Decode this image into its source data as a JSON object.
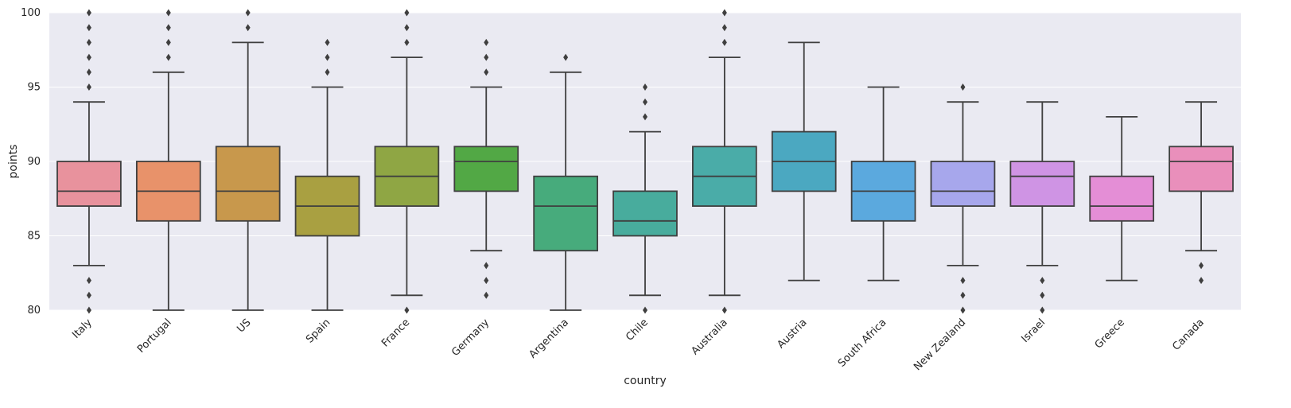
{
  "chart_data": {
    "type": "box",
    "xlabel": "country",
    "ylabel": "points",
    "ylim": [
      80,
      100
    ],
    "yticks": [
      80,
      85,
      90,
      95,
      100
    ],
    "grid": true,
    "style": {
      "background": "#eaeaf2",
      "gridline": "#ffffff",
      "box_edge": "#3f3f3f"
    },
    "categories": [
      "Italy",
      "Portugal",
      "US",
      "Spain",
      "France",
      "Germany",
      "Argentina",
      "Chile",
      "Australia",
      "Austria",
      "South Africa",
      "New Zealand",
      "Israel",
      "Greece",
      "Canada"
    ],
    "boxes": [
      {
        "name": "Italy",
        "color": "#e8929d",
        "whislo": 83,
        "q1": 87,
        "med": 88,
        "q3": 90,
        "whishi": 94,
        "fliers": [
          80,
          81,
          82,
          95,
          96,
          97,
          98,
          99,
          100
        ]
      },
      {
        "name": "Portugal",
        "color": "#e8926a",
        "whislo": 80,
        "q1": 86,
        "med": 88,
        "q3": 90,
        "whishi": 96,
        "fliers": [
          97,
          98,
          99,
          100
        ]
      },
      {
        "name": "US",
        "color": "#c8984c",
        "whislo": 80,
        "q1": 86,
        "med": 88,
        "q3": 91,
        "whishi": 98,
        "fliers": [
          99,
          100
        ]
      },
      {
        "name": "Spain",
        "color": "#a9a041",
        "whislo": 80,
        "q1": 85,
        "med": 87,
        "q3": 89,
        "whishi": 95,
        "fliers": [
          96,
          97,
          98
        ]
      },
      {
        "name": "France",
        "color": "#8fa644",
        "whislo": 81,
        "q1": 87,
        "med": 89,
        "q3": 91,
        "whishi": 97,
        "fliers": [
          80,
          98,
          99,
          100
        ]
      },
      {
        "name": "Germany",
        "color": "#52a845",
        "whislo": 84,
        "q1": 88,
        "med": 90,
        "q3": 91,
        "whishi": 95,
        "fliers": [
          81,
          82,
          83,
          96,
          97,
          98
        ]
      },
      {
        "name": "Argentina",
        "color": "#47ab7c",
        "whislo": 80,
        "q1": 84,
        "med": 87,
        "q3": 89,
        "whishi": 96,
        "fliers": [
          97
        ]
      },
      {
        "name": "Chile",
        "color": "#48ac9d",
        "whislo": 81,
        "q1": 85,
        "med": 86,
        "q3": 88,
        "whishi": 92,
        "fliers": [
          80,
          93,
          94,
          95
        ]
      },
      {
        "name": "Australia",
        "color": "#4aaca8",
        "whislo": 81,
        "q1": 87,
        "med": 89,
        "q3": 91,
        "whishi": 97,
        "fliers": [
          80,
          98,
          99,
          100
        ]
      },
      {
        "name": "Austria",
        "color": "#4ba8c1",
        "whislo": 82,
        "q1": 88,
        "med": 90,
        "q3": 92,
        "whishi": 98,
        "fliers": []
      },
      {
        "name": "South Africa",
        "color": "#5ba9de",
        "whislo": 82,
        "q1": 86,
        "med": 88,
        "q3": 90,
        "whishi": 95,
        "fliers": []
      },
      {
        "name": "New Zealand",
        "color": "#a7a7ec",
        "whislo": 83,
        "q1": 87,
        "med": 88,
        "q3": 90,
        "whishi": 94,
        "fliers": [
          80,
          81,
          82,
          95
        ]
      },
      {
        "name": "Israel",
        "color": "#cf94e4",
        "whislo": 83,
        "q1": 87,
        "med": 89,
        "q3": 90,
        "whishi": 94,
        "fliers": [
          80,
          81,
          82
        ]
      },
      {
        "name": "Greece",
        "color": "#e48ed6",
        "whislo": 82,
        "q1": 86,
        "med": 87,
        "q3": 89,
        "whishi": 93,
        "fliers": []
      },
      {
        "name": "Canada",
        "color": "#e98fbb",
        "whislo": 84,
        "q1": 88,
        "med": 90,
        "q3": 91,
        "whishi": 94,
        "fliers": [
          82,
          83
        ]
      }
    ]
  }
}
